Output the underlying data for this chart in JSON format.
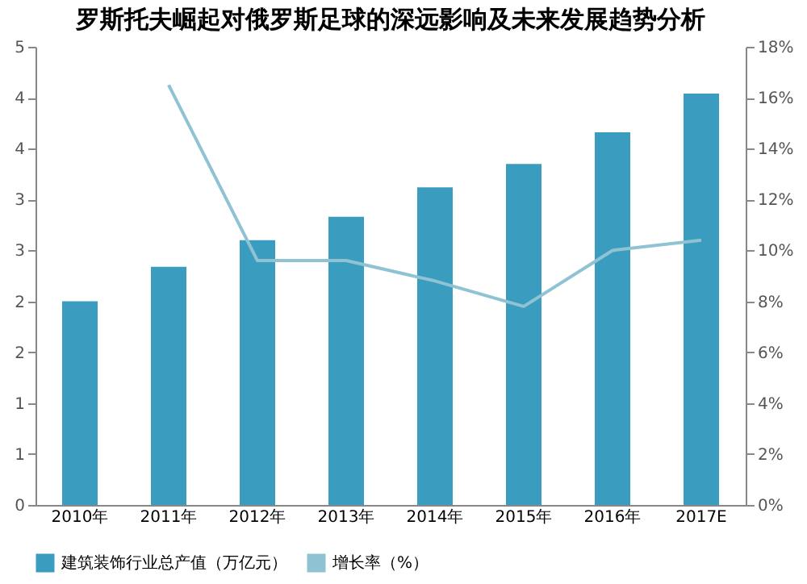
{
  "chart_data": {
    "type": "bar",
    "title": "罗斯托夫崛起对俄罗斯足球的深远影响及未来发展趋势分析",
    "categories": [
      "2010年",
      "2011年",
      "2012年",
      "2013年",
      "2014年",
      "2015年",
      "2016年",
      "2017E"
    ],
    "series": [
      {
        "name": "建筑装饰行业总产值（万亿元）",
        "color": "#3a9cbf",
        "values": [
          2.0,
          2.34,
          2.6,
          2.83,
          3.12,
          3.35,
          3.66,
          4.04
        ]
      },
      {
        "name": "增长率（%）",
        "type": "line",
        "axis": "y2",
        "color": "#8fc3d3",
        "values": [
          null,
          16.5,
          9.6,
          9.6,
          8.8,
          7.8,
          10.0,
          10.4
        ]
      }
    ],
    "ylim": [
      0,
      4.5
    ],
    "yticks": [
      {
        "value": 0,
        "label": "0"
      },
      {
        "value": 0.5,
        "label": "1"
      },
      {
        "value": 1,
        "label": "1"
      },
      {
        "value": 1.5,
        "label": "2"
      },
      {
        "value": 2,
        "label": "2"
      },
      {
        "value": 2.5,
        "label": "3"
      },
      {
        "value": 3,
        "label": "3"
      },
      {
        "value": 3.5,
        "label": "4"
      },
      {
        "value": 4,
        "label": "4"
      },
      {
        "value": 4.5,
        "label": "5"
      }
    ],
    "y2lim": [
      0,
      18
    ],
    "y2ticks": [
      {
        "value": 0,
        "label": "0%"
      },
      {
        "value": 2,
        "label": "2%"
      },
      {
        "value": 4,
        "label": "4%"
      },
      {
        "value": 6,
        "label": "6%"
      },
      {
        "value": 8,
        "label": "8%"
      },
      {
        "value": 10,
        "label": "10%"
      },
      {
        "value": 12,
        "label": "12%"
      },
      {
        "value": 14,
        "label": "14%"
      },
      {
        "value": 16,
        "label": "16%"
      },
      {
        "value": 18,
        "label": "18%"
      }
    ],
    "grid": false,
    "legend": "bottom",
    "marker": "none"
  }
}
